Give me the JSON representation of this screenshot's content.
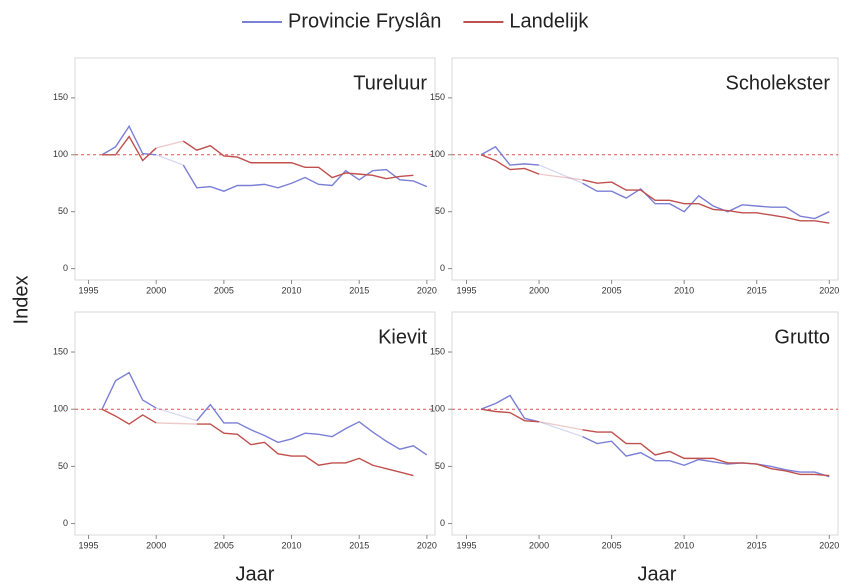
{
  "figure": {
    "y_label": "Index",
    "x_labels": [
      "Jaar",
      "Jaar"
    ]
  },
  "chart_data": [
    {
      "type": "line",
      "title": "Tureluur",
      "xlim": [
        1994,
        2020.6
      ],
      "ylim": [
        -10,
        185
      ],
      "xticks": [
        1995,
        2000,
        2005,
        2010,
        2015,
        2020
      ],
      "yticks": [
        0,
        50,
        100,
        150
      ],
      "hline": 100,
      "x": [
        1996,
        1997,
        1998,
        1999,
        2000,
        2001,
        2002,
        2003,
        2004,
        2005,
        2006,
        2007,
        2008,
        2009,
        2010,
        2011,
        2012,
        2013,
        2014,
        2015,
        2016,
        2017,
        2018,
        2019,
        2020
      ],
      "series": [
        {
          "name": "Provincie Fryslân",
          "color": "#7b7fd6",
          "values": [
            100,
            107,
            125,
            101,
            100,
            null,
            91,
            71,
            72,
            68,
            73,
            73,
            74,
            71,
            75,
            80,
            74,
            73,
            86,
            78,
            86,
            87,
            78,
            77,
            72
          ]
        },
        {
          "name": "Landelijk",
          "color": "#c0504d",
          "values": [
            100,
            100,
            116,
            95,
            106,
            null,
            112,
            104,
            108,
            99,
            98,
            93,
            93,
            93,
            93,
            89,
            89,
            80,
            84,
            83,
            82,
            79,
            81,
            82,
            null
          ]
        }
      ]
    },
    {
      "type": "line",
      "title": "Scholekster",
      "xlim": [
        1994,
        2020.6
      ],
      "ylim": [
        -10,
        185
      ],
      "xticks": [
        1995,
        2000,
        2005,
        2010,
        2015,
        2020
      ],
      "yticks": [
        0,
        50,
        100,
        150
      ],
      "hline": 100,
      "x": [
        1996,
        1997,
        1998,
        1999,
        2000,
        2001,
        2002,
        2003,
        2004,
        2005,
        2006,
        2007,
        2008,
        2009,
        2010,
        2011,
        2012,
        2013,
        2014,
        2015,
        2016,
        2017,
        2018,
        2019,
        2020
      ],
      "series": [
        {
          "name": "Provincie Fryslân",
          "color": "#7b7fd6",
          "values": [
            100,
            107,
            91,
            92,
            91,
            null,
            null,
            75,
            68,
            68,
            62,
            70,
            57,
            57,
            50,
            64,
            55,
            50,
            56,
            55,
            54,
            54,
            46,
            44,
            50
          ]
        },
        {
          "name": "Landelijk",
          "color": "#c0504d",
          "values": [
            100,
            95,
            87,
            88,
            83,
            null,
            null,
            78,
            75,
            76,
            69,
            69,
            60,
            60,
            57,
            57,
            52,
            51,
            49,
            49,
            47,
            45,
            42,
            42,
            40
          ]
        }
      ]
    },
    {
      "type": "line",
      "title": "Kievit",
      "xlim": [
        1994,
        2020.6
      ],
      "ylim": [
        -10,
        185
      ],
      "xticks": [
        1995,
        2000,
        2005,
        2010,
        2015,
        2020
      ],
      "yticks": [
        0,
        50,
        100,
        150
      ],
      "hline": 100,
      "x": [
        1996,
        1997,
        1998,
        1999,
        2000,
        2001,
        2002,
        2003,
        2004,
        2005,
        2006,
        2007,
        2008,
        2009,
        2010,
        2011,
        2012,
        2013,
        2014,
        2015,
        2016,
        2017,
        2018,
        2019,
        2020
      ],
      "series": [
        {
          "name": "Provincie Fryslân",
          "color": "#7b7fd6",
          "values": [
            100,
            125,
            132,
            108,
            101,
            null,
            null,
            90,
            104,
            88,
            88,
            82,
            77,
            71,
            74,
            79,
            78,
            76,
            83,
            89,
            80,
            72,
            65,
            68,
            60
          ]
        },
        {
          "name": "Landelijk",
          "color": "#c0504d",
          "values": [
            100,
            94,
            87,
            95,
            88,
            null,
            null,
            87,
            87,
            79,
            78,
            69,
            71,
            61,
            59,
            59,
            51,
            53,
            53,
            57,
            51,
            48,
            45,
            42,
            null
          ]
        }
      ]
    },
    {
      "type": "line",
      "title": "Grutto",
      "xlim": [
        1994,
        2020.6
      ],
      "ylim": [
        -10,
        185
      ],
      "xticks": [
        1995,
        2000,
        2005,
        2010,
        2015,
        2020
      ],
      "yticks": [
        0,
        50,
        100,
        150
      ],
      "hline": 100,
      "x": [
        1996,
        1997,
        1998,
        1999,
        2000,
        2001,
        2002,
        2003,
        2004,
        2005,
        2006,
        2007,
        2008,
        2009,
        2010,
        2011,
        2012,
        2013,
        2014,
        2015,
        2016,
        2017,
        2018,
        2019,
        2020
      ],
      "series": [
        {
          "name": "Provincie Fryslân",
          "color": "#7b7fd6",
          "values": [
            100,
            105,
            112,
            92,
            89,
            null,
            null,
            76,
            70,
            72,
            59,
            62,
            55,
            55,
            51,
            56,
            54,
            52,
            53,
            52,
            50,
            47,
            45,
            45,
            41
          ]
        },
        {
          "name": "Landelijk",
          "color": "#c0504d",
          "values": [
            100,
            98,
            97,
            90,
            89,
            null,
            null,
            82,
            80,
            80,
            70,
            70,
            60,
            63,
            57,
            57,
            57,
            53,
            53,
            52,
            48,
            46,
            43,
            43,
            42
          ]
        }
      ]
    }
  ]
}
